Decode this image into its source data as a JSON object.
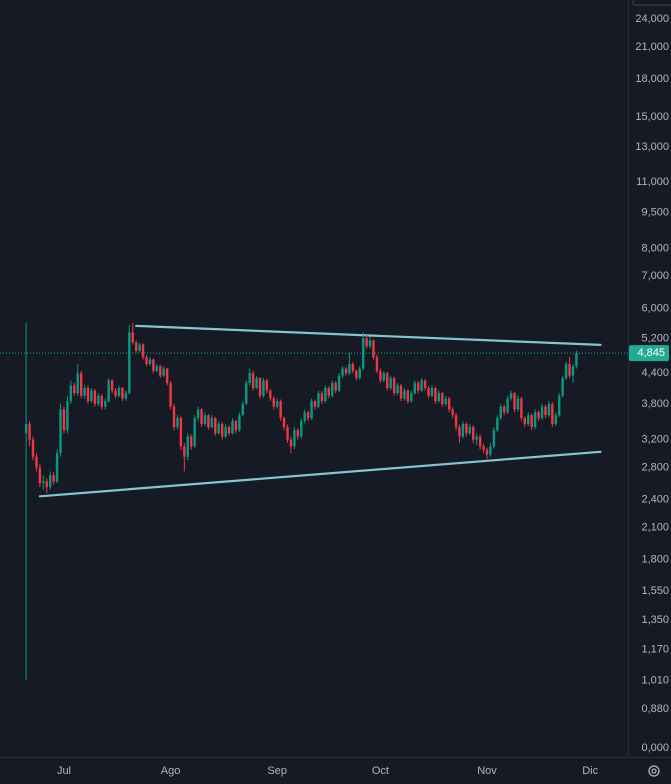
{
  "chart_data": {
    "type": "candlestick",
    "log_scale": true,
    "up_color": "#089981",
    "down_color": "#f23645",
    "ylim": [
      0.7,
      26.3
    ],
    "yticks": [
      {
        "value": 24,
        "label": "24,000"
      },
      {
        "value": 21,
        "label": "21,000"
      },
      {
        "value": 18,
        "label": "18,000"
      },
      {
        "value": 15,
        "label": "15,000"
      },
      {
        "value": 13,
        "label": "13,000"
      },
      {
        "value": 11,
        "label": "11,000"
      },
      {
        "value": 9.5,
        "label": "9,500"
      },
      {
        "value": 8,
        "label": "8,000"
      },
      {
        "value": 7,
        "label": "7,000"
      },
      {
        "value": 6,
        "label": "6,000"
      },
      {
        "value": 5.2,
        "label": "5,200"
      },
      {
        "value": 4.4,
        "label": "4,400"
      },
      {
        "value": 3.8,
        "label": "3,800"
      },
      {
        "value": 3.2,
        "label": "3,200"
      },
      {
        "value": 2.8,
        "label": "2,800"
      },
      {
        "value": 2.4,
        "label": "2,400"
      },
      {
        "value": 2.1,
        "label": "2,100"
      },
      {
        "value": 1.8,
        "label": "1,800"
      },
      {
        "value": 1.55,
        "label": "1,550"
      },
      {
        "value": 1.35,
        "label": "1,350"
      },
      {
        "value": 1.17,
        "label": "1,170"
      },
      {
        "value": 1.01,
        "label": "1,010"
      },
      {
        "value": 0.88,
        "label": "0,880"
      },
      {
        "value": 0,
        "label": "0,000"
      }
    ],
    "xlim": [
      -7.6,
      175
    ],
    "xticks": [
      {
        "value": 11,
        "label": "Jul"
      },
      {
        "value": 42,
        "label": "Ago"
      },
      {
        "value": 73,
        "label": "Sep"
      },
      {
        "value": 103,
        "label": "Oct"
      },
      {
        "value": 134,
        "label": "Nov"
      },
      {
        "value": 164,
        "label": "Dic"
      }
    ],
    "ohlc": [
      [
        3.3,
        5.6,
        1.01,
        3.45
      ],
      [
        3.45,
        3.5,
        3.1,
        3.2
      ],
      [
        3.2,
        3.25,
        2.9,
        2.95
      ],
      [
        2.95,
        3.0,
        2.75,
        2.8
      ],
      [
        2.8,
        2.85,
        2.55,
        2.6
      ],
      [
        2.6,
        2.7,
        2.52,
        2.62
      ],
      [
        2.62,
        2.66,
        2.48,
        2.55
      ],
      [
        2.55,
        2.75,
        2.52,
        2.7
      ],
      [
        2.7,
        2.74,
        2.58,
        2.62
      ],
      [
        2.62,
        3.05,
        2.6,
        3.0
      ],
      [
        3.0,
        3.8,
        2.95,
        3.7
      ],
      [
        3.7,
        3.75,
        3.3,
        3.35
      ],
      [
        3.35,
        3.95,
        3.3,
        3.85
      ],
      [
        3.85,
        4.25,
        3.8,
        4.15
      ],
      [
        4.15,
        4.2,
        3.95,
        4.0
      ],
      [
        4.0,
        4.6,
        3.95,
        4.4
      ],
      [
        4.4,
        4.45,
        3.9,
        3.95
      ],
      [
        3.95,
        4.15,
        3.9,
        4.1
      ],
      [
        4.1,
        4.15,
        3.8,
        3.85
      ],
      [
        3.85,
        4.1,
        3.82,
        4.05
      ],
      [
        4.05,
        4.08,
        3.75,
        3.8
      ],
      [
        3.8,
        4.0,
        3.76,
        3.95
      ],
      [
        3.95,
        3.98,
        3.7,
        3.75
      ],
      [
        3.75,
        3.9,
        3.7,
        3.85
      ],
      [
        3.85,
        4.3,
        3.82,
        4.25
      ],
      [
        4.25,
        4.28,
        4.0,
        4.05
      ],
      [
        4.05,
        4.1,
        3.9,
        3.95
      ],
      [
        3.95,
        4.15,
        3.92,
        4.1
      ],
      [
        4.1,
        4.12,
        3.85,
        3.9
      ],
      [
        3.9,
        4.05,
        3.86,
        4.0
      ],
      [
        4.0,
        5.55,
        3.98,
        5.35
      ],
      [
        5.35,
        5.6,
        5.05,
        5.1
      ],
      [
        5.1,
        5.15,
        4.85,
        4.9
      ],
      [
        4.9,
        5.1,
        4.86,
        5.05
      ],
      [
        5.05,
        5.08,
        4.7,
        4.75
      ],
      [
        4.75,
        4.8,
        4.55,
        4.6
      ],
      [
        4.6,
        4.75,
        4.56,
        4.7
      ],
      [
        4.7,
        4.72,
        4.4,
        4.45
      ],
      [
        4.45,
        4.6,
        4.42,
        4.55
      ],
      [
        4.55,
        4.58,
        4.3,
        4.35
      ],
      [
        4.35,
        4.55,
        4.32,
        4.5
      ],
      [
        4.5,
        4.52,
        4.15,
        4.2
      ],
      [
        4.2,
        4.24,
        3.7,
        3.75
      ],
      [
        3.75,
        3.8,
        3.35,
        3.4
      ],
      [
        3.4,
        3.6,
        3.36,
        3.55
      ],
      [
        3.55,
        3.58,
        3.05,
        3.1
      ],
      [
        3.1,
        3.15,
        2.75,
        2.95
      ],
      [
        2.95,
        3.3,
        2.9,
        3.25
      ],
      [
        3.25,
        3.28,
        3.05,
        3.1
      ],
      [
        3.1,
        3.6,
        3.08,
        3.55
      ],
      [
        3.55,
        3.75,
        3.5,
        3.7
      ],
      [
        3.7,
        3.72,
        3.4,
        3.45
      ],
      [
        3.45,
        3.65,
        3.42,
        3.6
      ],
      [
        3.6,
        3.62,
        3.36,
        3.4
      ],
      [
        3.4,
        3.6,
        3.38,
        3.55
      ],
      [
        3.55,
        3.57,
        3.26,
        3.3
      ],
      [
        3.3,
        3.5,
        3.28,
        3.45
      ],
      [
        3.45,
        3.48,
        3.2,
        3.25
      ],
      [
        3.25,
        3.45,
        3.22,
        3.4
      ],
      [
        3.4,
        3.43,
        3.26,
        3.3
      ],
      [
        3.3,
        3.55,
        3.28,
        3.5
      ],
      [
        3.5,
        3.52,
        3.3,
        3.35
      ],
      [
        3.35,
        3.65,
        3.32,
        3.6
      ],
      [
        3.6,
        3.85,
        3.58,
        3.8
      ],
      [
        3.8,
        4.25,
        3.78,
        4.2
      ],
      [
        4.2,
        4.5,
        4.15,
        4.4
      ],
      [
        4.4,
        4.45,
        4.05,
        4.1
      ],
      [
        4.1,
        4.35,
        4.08,
        4.3
      ],
      [
        4.3,
        4.32,
        3.9,
        3.95
      ],
      [
        3.95,
        4.3,
        3.92,
        4.25
      ],
      [
        4.25,
        4.28,
        4.0,
        4.05
      ],
      [
        4.05,
        4.08,
        3.85,
        3.9
      ],
      [
        3.9,
        3.94,
        3.7,
        3.75
      ],
      [
        3.75,
        3.9,
        3.72,
        3.85
      ],
      [
        3.85,
        3.88,
        3.5,
        3.55
      ],
      [
        3.55,
        3.58,
        3.35,
        3.4
      ],
      [
        3.4,
        3.44,
        3.15,
        3.2
      ],
      [
        3.2,
        3.25,
        3.0,
        3.1
      ],
      [
        3.1,
        3.4,
        3.06,
        3.35
      ],
      [
        3.35,
        3.38,
        3.2,
        3.25
      ],
      [
        3.25,
        3.55,
        3.22,
        3.5
      ],
      [
        3.5,
        3.7,
        3.46,
        3.65
      ],
      [
        3.65,
        3.68,
        3.5,
        3.55
      ],
      [
        3.55,
        3.9,
        3.52,
        3.85
      ],
      [
        3.85,
        3.88,
        3.7,
        3.75
      ],
      [
        3.75,
        4.05,
        3.72,
        4.0
      ],
      [
        4.0,
        4.04,
        3.8,
        3.85
      ],
      [
        3.85,
        4.15,
        3.82,
        4.1
      ],
      [
        4.1,
        4.13,
        3.9,
        3.95
      ],
      [
        3.95,
        4.25,
        3.92,
        4.2
      ],
      [
        4.2,
        4.24,
        4.0,
        4.05
      ],
      [
        4.05,
        4.4,
        4.02,
        4.35
      ],
      [
        4.35,
        4.55,
        4.3,
        4.5
      ],
      [
        4.5,
        4.54,
        4.35,
        4.4
      ],
      [
        4.4,
        4.85,
        4.36,
        4.6
      ],
      [
        4.6,
        4.64,
        4.4,
        4.45
      ],
      [
        4.45,
        4.48,
        4.25,
        4.3
      ],
      [
        4.3,
        4.55,
        4.26,
        4.5
      ],
      [
        4.5,
        5.35,
        4.46,
        5.2
      ],
      [
        5.2,
        5.3,
        4.95,
        5.0
      ],
      [
        5.0,
        5.25,
        4.96,
        5.15
      ],
      [
        5.15,
        5.18,
        4.7,
        4.75
      ],
      [
        4.75,
        4.8,
        4.4,
        4.45
      ],
      [
        4.45,
        4.5,
        4.2,
        4.25
      ],
      [
        4.25,
        4.45,
        4.22,
        4.4
      ],
      [
        4.4,
        4.43,
        4.05,
        4.1
      ],
      [
        4.1,
        4.35,
        4.06,
        4.3
      ],
      [
        4.3,
        4.33,
        3.95,
        4.0
      ],
      [
        4.0,
        4.2,
        3.96,
        4.15
      ],
      [
        4.15,
        4.18,
        3.85,
        3.9
      ],
      [
        3.9,
        4.1,
        3.86,
        4.05
      ],
      [
        4.05,
        4.08,
        3.8,
        3.85
      ],
      [
        3.85,
        4.05,
        3.82,
        4.0
      ],
      [
        4.0,
        4.25,
        3.96,
        4.2
      ],
      [
        4.2,
        4.24,
        4.0,
        4.05
      ],
      [
        4.05,
        4.3,
        4.02,
        4.25
      ],
      [
        4.25,
        4.28,
        4.05,
        4.1
      ],
      [
        4.1,
        4.14,
        3.9,
        3.95
      ],
      [
        3.95,
        4.15,
        3.92,
        4.1
      ],
      [
        4.1,
        4.13,
        3.8,
        3.85
      ],
      [
        3.85,
        4.05,
        3.82,
        4.0
      ],
      [
        4.0,
        4.03,
        3.75,
        3.8
      ],
      [
        3.8,
        3.95,
        3.76,
        3.9
      ],
      [
        3.9,
        3.93,
        3.65,
        3.7
      ],
      [
        3.7,
        3.74,
        3.55,
        3.6
      ],
      [
        3.6,
        3.64,
        3.35,
        3.4
      ],
      [
        3.4,
        3.44,
        3.15,
        3.25
      ],
      [
        3.25,
        3.5,
        3.22,
        3.45
      ],
      [
        3.45,
        3.48,
        3.25,
        3.3
      ],
      [
        3.3,
        3.45,
        3.27,
        3.4
      ],
      [
        3.4,
        3.43,
        3.15,
        3.2
      ],
      [
        3.2,
        3.3,
        3.12,
        3.25
      ],
      [
        3.25,
        3.28,
        3.05,
        3.1
      ],
      [
        3.1,
        3.14,
        3.0,
        3.05
      ],
      [
        3.05,
        3.08,
        2.92,
        2.98
      ],
      [
        2.98,
        3.15,
        2.95,
        3.1
      ],
      [
        3.1,
        3.4,
        3.07,
        3.35
      ],
      [
        3.35,
        3.6,
        3.32,
        3.55
      ],
      [
        3.55,
        3.8,
        3.52,
        3.75
      ],
      [
        3.75,
        3.78,
        3.6,
        3.65
      ],
      [
        3.65,
        3.95,
        3.62,
        3.9
      ],
      [
        3.9,
        4.05,
        3.86,
        4.0
      ],
      [
        4.0,
        4.03,
        3.65,
        3.7
      ],
      [
        3.7,
        3.95,
        3.66,
        3.9
      ],
      [
        3.9,
        3.93,
        3.5,
        3.55
      ],
      [
        3.55,
        3.58,
        3.4,
        3.45
      ],
      [
        3.45,
        3.65,
        3.42,
        3.6
      ],
      [
        3.6,
        3.63,
        3.35,
        3.4
      ],
      [
        3.4,
        3.7,
        3.37,
        3.65
      ],
      [
        3.65,
        3.68,
        3.5,
        3.55
      ],
      [
        3.55,
        3.8,
        3.52,
        3.75
      ],
      [
        3.75,
        3.78,
        3.55,
        3.6
      ],
      [
        3.6,
        3.85,
        3.57,
        3.8
      ],
      [
        3.8,
        3.83,
        3.4,
        3.45
      ],
      [
        3.45,
        3.65,
        3.42,
        3.6
      ],
      [
        3.6,
        4.0,
        3.57,
        3.95
      ],
      [
        3.95,
        4.35,
        3.92,
        4.3
      ],
      [
        4.3,
        4.65,
        4.26,
        4.6
      ],
      [
        4.6,
        4.75,
        4.3,
        4.35
      ],
      [
        4.35,
        4.6,
        4.2,
        4.55
      ],
      [
        4.55,
        4.9,
        4.5,
        4.845
      ]
    ],
    "trendlines": [
      {
        "color": "#86c5d0",
        "x": [
          32,
          167
        ],
        "y": [
          5.52,
          5.04
        ]
      },
      {
        "color": "#86c5d0",
        "x": [
          4,
          167
        ],
        "y": [
          2.44,
          3.02
        ]
      }
    ],
    "last_price": {
      "value": 4.845,
      "label": "4,845",
      "color": "#22ab94"
    }
  }
}
